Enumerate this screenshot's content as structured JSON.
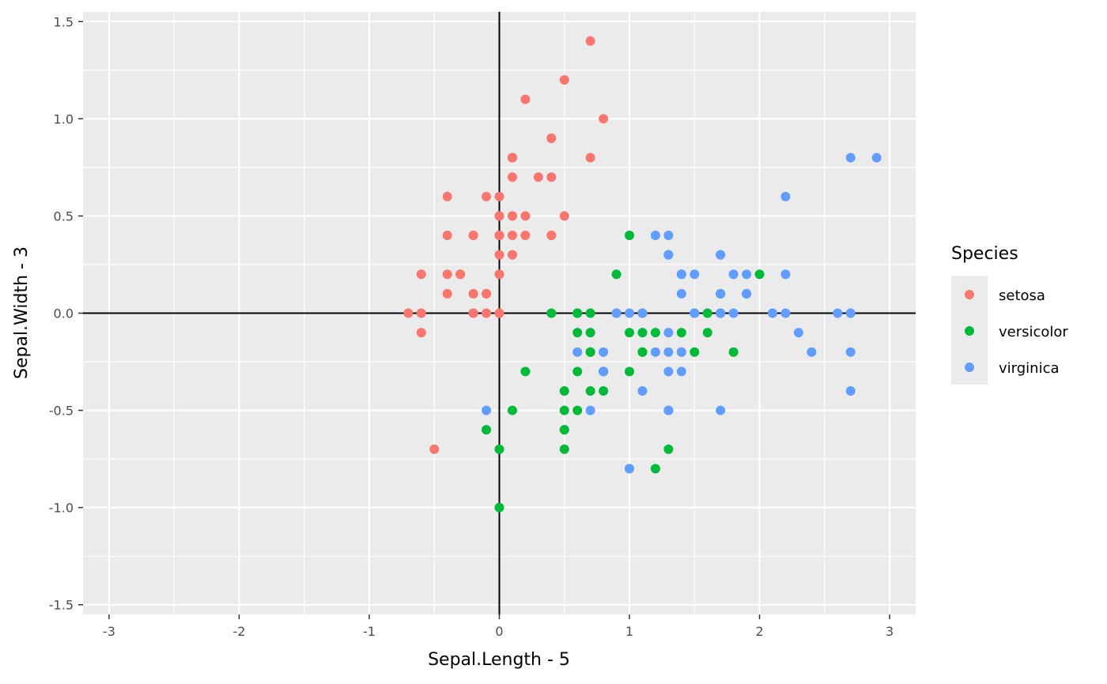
{
  "chart_data": {
    "type": "scatter",
    "xlabel": "Sepal.Length - 5",
    "ylabel": "Sepal.Width - 3",
    "xlim": [
      -3.2,
      3.2
    ],
    "ylim": [
      -1.55,
      1.55
    ],
    "x_ticks": [
      -3,
      -2,
      -1,
      0,
      1,
      2,
      3
    ],
    "x_tick_labels": [
      "-3",
      "-2",
      "-1",
      "0",
      "1",
      "2",
      "3"
    ],
    "y_ticks": [
      -1.5,
      -1.0,
      -0.5,
      0.0,
      0.5,
      1.0,
      1.5
    ],
    "y_tick_labels": [
      "-1.5",
      "-1.0",
      "-0.5",
      "0.0",
      "0.5",
      "1.0",
      "1.5"
    ],
    "grid": true,
    "reference_lines": {
      "x": 0,
      "y": 0
    },
    "legend": {
      "title": "Species",
      "placement": "right"
    },
    "series": [
      {
        "name": "setosa",
        "color": "#F8766D",
        "points": [
          [
            0.1,
            0.5
          ],
          [
            -0.1,
            0
          ],
          [
            -0.3,
            0.2
          ],
          [
            -0.4,
            0.1
          ],
          [
            0,
            0.6
          ],
          [
            0.4,
            0.9
          ],
          [
            -0.4,
            0.4
          ],
          [
            0,
            0.4
          ],
          [
            -0.6,
            -0.1
          ],
          [
            -0.1,
            0.1
          ],
          [
            0.4,
            0.7
          ],
          [
            -0.2,
            0.4
          ],
          [
            -0.2,
            0
          ],
          [
            -0.7,
            0
          ],
          [
            0.8,
            1
          ],
          [
            0.7,
            1.4
          ],
          [
            0.4,
            0.9
          ],
          [
            0.1,
            0.5
          ],
          [
            0.7,
            0.8
          ],
          [
            0.1,
            0.8
          ],
          [
            0.4,
            0.4
          ],
          [
            0.1,
            0.7
          ],
          [
            -0.4,
            0.6
          ],
          [
            0.1,
            0.3
          ],
          [
            -0.2,
            0.4
          ],
          [
            0,
            0
          ],
          [
            0,
            0.4
          ],
          [
            0.2,
            0.5
          ],
          [
            0.2,
            0.4
          ],
          [
            -0.3,
            0.2
          ],
          [
            -0.2,
            0.1
          ],
          [
            0.4,
            0.4
          ],
          [
            0.2,
            1.1
          ],
          [
            0.5,
            1.2
          ],
          [
            -0.1,
            0.1
          ],
          [
            0,
            0.2
          ],
          [
            0.5,
            0.5
          ],
          [
            -0.1,
            0.6
          ],
          [
            -0.6,
            0
          ],
          [
            0.1,
            0.4
          ],
          [
            0,
            0.5
          ],
          [
            -0.5,
            -0.7
          ],
          [
            -0.6,
            0.2
          ],
          [
            0,
            0.5
          ],
          [
            0.1,
            0.8
          ],
          [
            -0.2,
            0
          ],
          [
            0.1,
            0.8
          ],
          [
            -0.4,
            0.2
          ],
          [
            0.3,
            0.7
          ],
          [
            0,
            0.3
          ]
        ]
      },
      {
        "name": "versicolor",
        "color": "#00BA38",
        "points": [
          [
            2,
            0.2
          ],
          [
            1.4,
            0.2
          ],
          [
            1.9,
            0.1
          ],
          [
            0.5,
            -0.7
          ],
          [
            1.5,
            -0.2
          ],
          [
            0.7,
            -0.2
          ],
          [
            1.3,
            0.3
          ],
          [
            -0.1,
            -0.6
          ],
          [
            1.6,
            -0.1
          ],
          [
            0.2,
            -0.3
          ],
          [
            0,
            -1
          ],
          [
            0.9,
            0
          ],
          [
            1,
            -0.8
          ],
          [
            1.1,
            -0.1
          ],
          [
            0.6,
            -0.1
          ],
          [
            1.7,
            0.1
          ],
          [
            0.6,
            0
          ],
          [
            0.8,
            -0.3
          ],
          [
            1.2,
            -0.8
          ],
          [
            0.6,
            -0.5
          ],
          [
            0.9,
            0.2
          ],
          [
            1.1,
            -0.2
          ],
          [
            1.3,
            -0.5
          ],
          [
            1.1,
            -0.2
          ],
          [
            1.4,
            -0.1
          ],
          [
            1.6,
            0
          ],
          [
            1.8,
            -0.2
          ],
          [
            1.7,
            0
          ],
          [
            1,
            -0.1
          ],
          [
            0.7,
            -0.4
          ],
          [
            0.5,
            -0.6
          ],
          [
            0.5,
            -0.6
          ],
          [
            0.8,
            -0.3
          ],
          [
            1,
            -0.3
          ],
          [
            0.4,
            0
          ],
          [
            1,
            0.4
          ],
          [
            1.7,
            0.1
          ],
          [
            1.3,
            -0.7
          ],
          [
            0.6,
            0
          ],
          [
            0.5,
            -0.5
          ],
          [
            0.5,
            -0.4
          ],
          [
            1.1,
            0
          ],
          [
            0.8,
            -0.4
          ],
          [
            0,
            -0.7
          ],
          [
            0.6,
            -0.3
          ],
          [
            0.7,
            0
          ],
          [
            0.7,
            -0.1
          ],
          [
            1.2,
            -0.1
          ],
          [
            0.1,
            -0.5
          ],
          [
            0.7,
            -0.2
          ]
        ]
      },
      {
        "name": "virginica",
        "color": "#619CFF",
        "points": [
          [
            1.3,
            0.3
          ],
          [
            0.8,
            -0.3
          ],
          [
            2.1,
            0
          ],
          [
            1.3,
            -0.1
          ],
          [
            1.5,
            0
          ],
          [
            2.6,
            0
          ],
          [
            -0.1,
            -0.5
          ],
          [
            2.3,
            -0.1
          ],
          [
            1.7,
            -0.5
          ],
          [
            2.2,
            0.6
          ],
          [
            1.5,
            0.2
          ],
          [
            1.4,
            -0.3
          ],
          [
            1.8,
            0
          ],
          [
            0.7,
            -0.5
          ],
          [
            0.8,
            -0.2
          ],
          [
            1.4,
            0.2
          ],
          [
            1.5,
            0
          ],
          [
            2.7,
            0.8
          ],
          [
            2.7,
            -0.4
          ],
          [
            1,
            -0.8
          ],
          [
            1.9,
            0.2
          ],
          [
            0.6,
            -0.2
          ],
          [
            2.7,
            -0.2
          ],
          [
            1.3,
            -0.3
          ],
          [
            1.7,
            0.3
          ],
          [
            2.2,
            0.2
          ],
          [
            1.2,
            -0.2
          ],
          [
            1.1,
            0
          ],
          [
            1.4,
            -0.2
          ],
          [
            2.2,
            0
          ],
          [
            2.4,
            -0.2
          ],
          [
            2.9,
            0.8
          ],
          [
            1.4,
            -0.2
          ],
          [
            1.3,
            -0.2
          ],
          [
            1.1,
            -0.4
          ],
          [
            2.7,
            0
          ],
          [
            1.3,
            0.4
          ],
          [
            1.4,
            0.1
          ],
          [
            1,
            0
          ],
          [
            1.9,
            0.1
          ],
          [
            1.7,
            0.1
          ],
          [
            1.9,
            0.1
          ],
          [
            0.8,
            -0.3
          ],
          [
            1.8,
            0.2
          ],
          [
            1.7,
            0.3
          ],
          [
            1.7,
            0
          ],
          [
            1.3,
            -0.5
          ],
          [
            1.5,
            0
          ],
          [
            1.2,
            0.4
          ],
          [
            0.9,
            0
          ]
        ]
      }
    ]
  }
}
